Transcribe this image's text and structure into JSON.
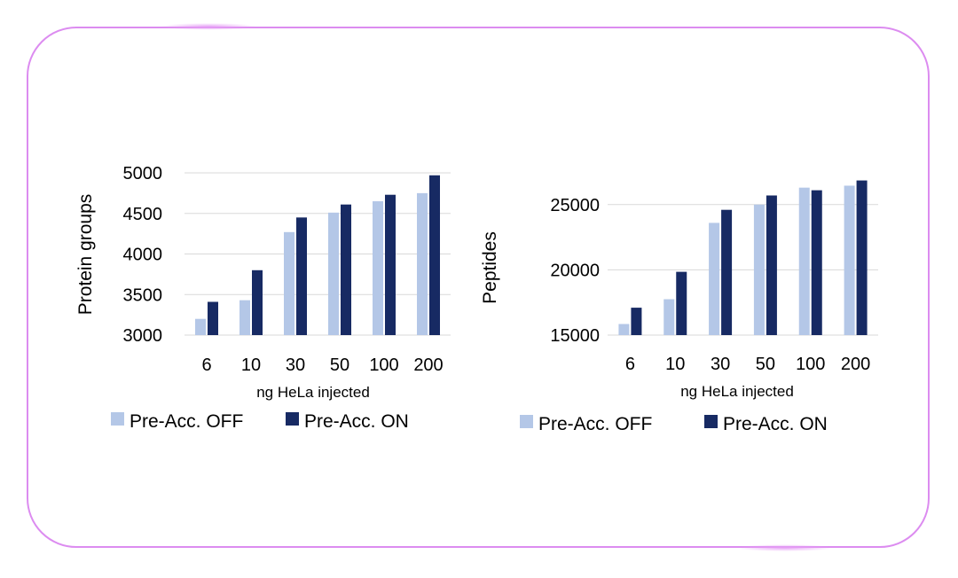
{
  "chart_data": [
    {
      "type": "bar",
      "categories": [
        "6",
        "10",
        "30",
        "50",
        "100",
        "200"
      ],
      "series": [
        {
          "name": "Pre-Acc. OFF",
          "color": "#b4c7e7",
          "values": [
            3200,
            3430,
            4270,
            4510,
            4650,
            4750
          ]
        },
        {
          "name": "Pre-Acc. ON",
          "color": "#172a63",
          "values": [
            3410,
            3800,
            4450,
            4610,
            4730,
            4970
          ]
        }
      ],
      "title": "",
      "xlabel": "ng HeLa injected",
      "ylabel": "Protein groups",
      "ylim": [
        3000,
        5000
      ],
      "yticks": [
        "3000",
        "3500",
        "4000",
        "4500",
        "5000"
      ],
      "grid": true,
      "legend": "bottom"
    },
    {
      "type": "bar",
      "categories": [
        "6",
        "10",
        "30",
        "50",
        "100",
        "200"
      ],
      "series": [
        {
          "name": "Pre-Acc. OFF",
          "color": "#b4c7e7",
          "values": [
            15850,
            17750,
            23600,
            25000,
            26300,
            26450
          ]
        },
        {
          "name": "Pre-Acc. ON",
          "color": "#172a63",
          "values": [
            17100,
            19850,
            24600,
            25700,
            26100,
            26850
          ]
        }
      ],
      "title": "",
      "xlabel": "ng HeLa injected",
      "ylabel": "Peptides",
      "ylim": [
        15000,
        27500
      ],
      "yticks": [
        "15000",
        "20000",
        "25000"
      ],
      "grid": true,
      "legend": "bottom"
    }
  ]
}
